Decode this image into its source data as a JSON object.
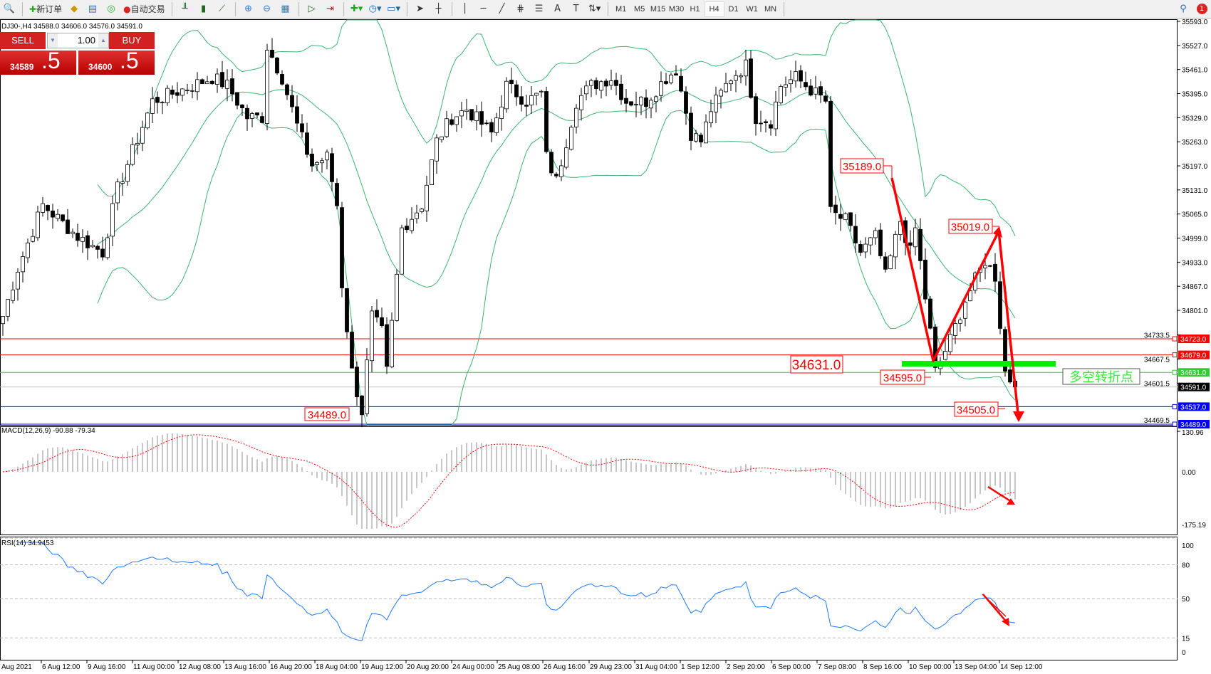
{
  "toolbar": {
    "new_order": "新订单",
    "auto_trading": "自动交易",
    "timeframes": [
      "M1",
      "M5",
      "M15",
      "M30",
      "H1",
      "H4",
      "D1",
      "W1",
      "MN"
    ],
    "active_timeframe": "H4",
    "notification_count": "1"
  },
  "chart_header": "DJ30-,H4  34588.0 34606.0 34576.0 34591.0",
  "trade_panel": {
    "sell_label": "SELL",
    "buy_label": "BUY",
    "lot": "1.00",
    "sell_base": "34589",
    "sell_big": ".5",
    "buy_base": "34600",
    "buy_big": ".5",
    "color": "#d32020"
  },
  "chart_data": {
    "type": "candlestick",
    "symbol": "DJ30-",
    "timeframe": "H4",
    "ohlc_last": {
      "open": 34588.0,
      "high": 34606.0,
      "low": 34576.0,
      "close": 34591.0
    },
    "ylim": [
      34469.5,
      35593.0
    ],
    "y_ticks": [
      "35593.0",
      "35527.0",
      "35461.0",
      "35395.0",
      "35329.0",
      "35263.0",
      "35197.0",
      "35131.0",
      "35065.0",
      "34999.0",
      "34933.0",
      "34867.0",
      "34801.0",
      "34733.5",
      "34667.5",
      "34601.5",
      "34469.5"
    ],
    "x_ticks": [
      "Aug 2021",
      "6 Aug 12:00",
      "9 Aug 16:00",
      "11 Aug 00:00",
      "12 Aug 08:00",
      "13 Aug 16:00",
      "16 Aug 20:00",
      "18 Aug 04:00",
      "19 Aug 12:00",
      "20 Aug 20:00",
      "24 Aug 00:00",
      "25 Aug 08:00",
      "26 Aug 16:00",
      "29 Aug 23:00",
      "31 Aug 04:00",
      "1 Sep 12:00",
      "2 Sep 20:00",
      "6 Sep 00:00",
      "7 Sep 08:00",
      "8 Sep 16:00",
      "10 Sep 00:00",
      "13 Sep 04:00",
      "14 Sep 12:00"
    ],
    "close_anchors": [
      [
        0,
        34785
      ],
      [
        3,
        34916
      ],
      [
        8,
        35090
      ],
      [
        15,
        35003
      ],
      [
        20,
        34960
      ],
      [
        23,
        35134
      ],
      [
        30,
        35374
      ],
      [
        36,
        35406
      ],
      [
        42,
        35439
      ],
      [
        45,
        35417
      ],
      [
        49,
        35330
      ],
      [
        52,
        35330
      ],
      [
        53,
        35525
      ],
      [
        56,
        35439
      ],
      [
        59,
        35308
      ],
      [
        62,
        35199
      ],
      [
        65,
        35221
      ],
      [
        67,
        35090
      ],
      [
        68,
        34872
      ],
      [
        70,
        34633
      ],
      [
        72,
        34524
      ],
      [
        74,
        34785
      ],
      [
        76,
        34742
      ],
      [
        77,
        34633
      ],
      [
        80,
        35025
      ],
      [
        84,
        35090
      ],
      [
        87,
        35264
      ],
      [
        90,
        35330
      ],
      [
        93,
        35352
      ],
      [
        98,
        35286
      ],
      [
        101,
        35417
      ],
      [
        105,
        35374
      ],
      [
        108,
        35395
      ],
      [
        109,
        35221
      ],
      [
        111,
        35156
      ],
      [
        115,
        35374
      ],
      [
        118,
        35417
      ],
      [
        122,
        35439
      ],
      [
        125,
        35374
      ],
      [
        129,
        35374
      ],
      [
        133,
        35439
      ],
      [
        135,
        35461
      ],
      [
        138,
        35286
      ],
      [
        140,
        35264
      ],
      [
        142,
        35352
      ],
      [
        146,
        35439
      ],
      [
        149,
        35472
      ],
      [
        151,
        35330
      ],
      [
        154,
        35319
      ],
      [
        156,
        35417
      ],
      [
        159,
        35439
      ],
      [
        163,
        35395
      ],
      [
        165,
        35374
      ],
      [
        166,
        35069
      ],
      [
        169,
        35047
      ],
      [
        172,
        34960
      ],
      [
        175,
        35003
      ],
      [
        177,
        34894
      ],
      [
        180,
        35047
      ],
      [
        182,
        34960
      ],
      [
        183,
        35025
      ],
      [
        186,
        34742
      ],
      [
        187,
        34633
      ],
      [
        190,
        34720
      ],
      [
        193,
        34829
      ],
      [
        197,
        34938
      ],
      [
        199,
        34894
      ],
      [
        201,
        34633
      ],
      [
        203,
        34591
      ]
    ],
    "bollinger": {
      "period": 20,
      "deviation": 2,
      "color": "#3cb371"
    },
    "hlines": [
      {
        "price": "34723.0",
        "color": "#ff0000"
      },
      {
        "price": "34679.0",
        "color": "#ff0000"
      },
      {
        "price": "34631.0",
        "color": "#32cd32"
      },
      {
        "price": "34591.0",
        "color": "#000000",
        "line": "#c0c0c0"
      },
      {
        "price": "34537.0",
        "color": "#0000ff"
      },
      {
        "price": "34489.0",
        "color": "#0000ff"
      }
    ],
    "annotations": {
      "labels": [
        "35189.0",
        "35019.0",
        "34631.0",
        "34595.0",
        "34505.0",
        "34489.0"
      ],
      "turning_point": "多空转折点",
      "arrow_color": "#ff0000",
      "support_color": "#00ee00"
    },
    "macd": {
      "label": "MACD(12,26,9) -90.88 -79.34",
      "params": [
        12,
        26,
        9
      ],
      "main": -90.88,
      "signal": -79.34,
      "ylim": [
        -175.19,
        130.96
      ],
      "y_ticks": [
        "130.96",
        "0.00",
        "-175.19"
      ]
    },
    "rsi": {
      "label": "RSI(14) 34.9453",
      "period": 14,
      "value": 34.9453,
      "ylim": [
        0,
        100
      ],
      "levels": [
        "80",
        "50",
        "15"
      ],
      "y_ticks": [
        "100",
        "80",
        "50",
        "15",
        "0"
      ],
      "color": "#1e78ff"
    }
  }
}
